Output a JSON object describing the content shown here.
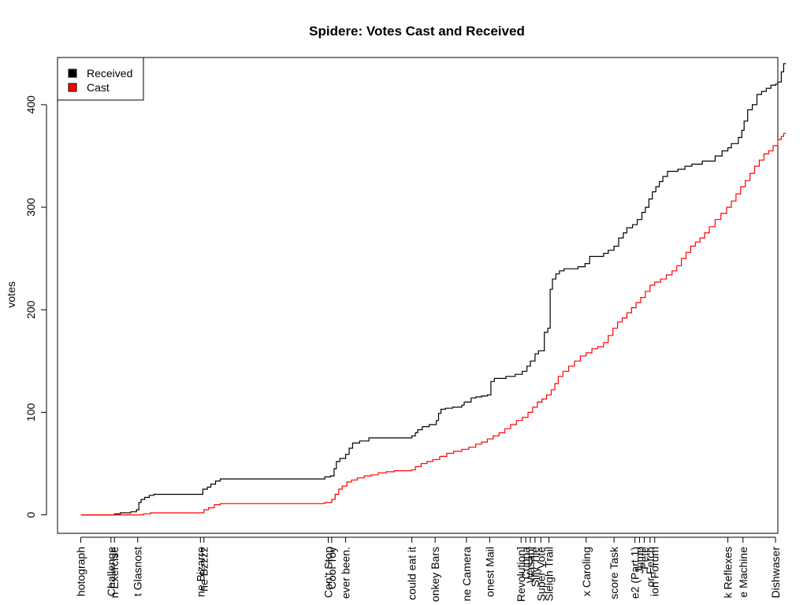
{
  "chart_data": {
    "type": "line",
    "subtype": "step",
    "title": "Spidere: Votes Cast and Received",
    "xlabel": "",
    "ylabel": "votes",
    "ylim": [
      -18,
      446
    ],
    "xlim": [
      -2,
      60
    ],
    "yticks": [
      0,
      100,
      200,
      300,
      400
    ],
    "ytick_labels": [
      "0",
      "100",
      "200",
      "300",
      "400"
    ],
    "legend": {
      "position": "top-left",
      "entries": [
        {
          "name": "Received",
          "color": "#000000"
        },
        {
          "name": "Cast",
          "color": "#ff0000"
        }
      ]
    },
    "x_ticks": [
      {
        "x": 0.0,
        "label": "hotograph"
      },
      {
        "x": 2.6,
        "label": "Challenge"
      },
      {
        "x": 2.9,
        "label": "n Exercise"
      },
      {
        "x": 4.9,
        "label": "t Glasnost"
      },
      {
        "x": 10.3,
        "label": "ne Bizarre"
      },
      {
        "x": 10.6,
        "label": "ne Bzzzz"
      },
      {
        "x": 21.3,
        "label": "Con't Stop"
      },
      {
        "x": 21.6,
        "label": "Cool Toy"
      },
      {
        "x": 22.8,
        "label": "ever been."
      },
      {
        "x": 28.5,
        "label": "could eat it"
      },
      {
        "x": 30.5,
        "label": "onkey Bars"
      },
      {
        "x": 33.2,
        "label": "ne Camera"
      },
      {
        "x": 35.2,
        "label": "onest Mail"
      },
      {
        "x": 37.9,
        "label": "Revolution]"
      },
      {
        "x": 38.3,
        "label": "Cuppa"
      },
      {
        "x": 38.7,
        "label": "Wasabi"
      },
      {
        "x": 39.1,
        "label": "Silly Tile"
      },
      {
        "x": 39.6,
        "label": "Super Vote"
      },
      {
        "x": 40.3,
        "label": "Sleigh Trail"
      },
      {
        "x": 43.5,
        "label": "x Caroling"
      },
      {
        "x": 45.9,
        "label": "score Task"
      },
      {
        "x": 47.7,
        "label": "e2 (Part 1)"
      },
      {
        "x": 48.1,
        "label": "Jump"
      },
      {
        "x": 48.5,
        "label": "Pete"
      },
      {
        "x": 49.0,
        "label": "or Fetch"
      },
      {
        "x": 49.4,
        "label": "ion Forum"
      },
      {
        "x": 55.7,
        "label": "k Reflexes"
      },
      {
        "x": 57.0,
        "label": "e Machine"
      },
      {
        "x": 59.8,
        "label": "Dishwaser"
      }
    ],
    "series": [
      {
        "name": "Received",
        "color": "#000000",
        "points": [
          [
            0.0,
            0
          ],
          [
            2.5,
            0
          ],
          [
            2.9,
            1
          ],
          [
            3.4,
            2
          ],
          [
            4.3,
            3
          ],
          [
            4.8,
            5
          ],
          [
            5.0,
            12
          ],
          [
            5.2,
            15
          ],
          [
            5.5,
            17
          ],
          [
            5.9,
            19
          ],
          [
            6.3,
            20
          ],
          [
            10.3,
            20
          ],
          [
            10.5,
            25
          ],
          [
            10.9,
            27
          ],
          [
            11.2,
            30
          ],
          [
            11.6,
            33
          ],
          [
            12.0,
            35
          ],
          [
            21.0,
            37
          ],
          [
            21.5,
            38
          ],
          [
            21.8,
            45
          ],
          [
            22.0,
            52
          ],
          [
            22.3,
            55
          ],
          [
            22.8,
            59
          ],
          [
            23.1,
            65
          ],
          [
            23.4,
            70
          ],
          [
            24.0,
            72
          ],
          [
            24.8,
            75
          ],
          [
            28.5,
            77
          ],
          [
            28.8,
            80
          ],
          [
            29.0,
            83
          ],
          [
            29.4,
            86
          ],
          [
            30.0,
            88
          ],
          [
            30.6,
            92
          ],
          [
            30.8,
            99
          ],
          [
            31.0,
            103
          ],
          [
            31.4,
            104
          ],
          [
            32.0,
            105
          ],
          [
            32.8,
            107
          ],
          [
            33.0,
            110
          ],
          [
            33.6,
            114
          ],
          [
            34.0,
            115
          ],
          [
            34.5,
            116
          ],
          [
            35.0,
            117
          ],
          [
            35.3,
            130
          ],
          [
            35.6,
            133
          ],
          [
            36.6,
            135
          ],
          [
            37.4,
            137
          ],
          [
            38.0,
            140
          ],
          [
            38.4,
            145
          ],
          [
            38.7,
            150
          ],
          [
            39.1,
            157
          ],
          [
            39.4,
            160
          ],
          [
            39.9,
            178
          ],
          [
            40.2,
            182
          ],
          [
            40.4,
            220
          ],
          [
            40.6,
            230
          ],
          [
            40.9,
            235
          ],
          [
            41.2,
            238
          ],
          [
            41.6,
            240
          ],
          [
            42.8,
            242
          ],
          [
            43.4,
            245
          ],
          [
            43.8,
            252
          ],
          [
            45.0,
            255
          ],
          [
            45.4,
            258
          ],
          [
            45.9,
            262
          ],
          [
            46.3,
            270
          ],
          [
            46.7,
            275
          ],
          [
            47.0,
            280
          ],
          [
            47.5,
            283
          ],
          [
            47.9,
            288
          ],
          [
            48.3,
            295
          ],
          [
            48.6,
            300
          ],
          [
            48.9,
            308
          ],
          [
            49.2,
            315
          ],
          [
            49.5,
            320
          ],
          [
            49.8,
            325
          ],
          [
            50.1,
            330
          ],
          [
            50.5,
            335
          ],
          [
            51.4,
            337
          ],
          [
            52.0,
            340
          ],
          [
            52.6,
            342
          ],
          [
            53.5,
            345
          ],
          [
            54.6,
            350
          ],
          [
            55.2,
            355
          ],
          [
            55.7,
            358
          ],
          [
            56.0,
            362
          ],
          [
            56.6,
            368
          ],
          [
            56.9,
            375
          ],
          [
            57.1,
            384
          ],
          [
            57.4,
            395
          ],
          [
            57.8,
            400
          ],
          [
            58.2,
            410
          ],
          [
            58.6,
            413
          ],
          [
            59.0,
            416
          ],
          [
            59.4,
            419
          ],
          [
            59.8,
            420
          ],
          [
            60.0,
            422
          ],
          [
            60.3,
            432
          ],
          [
            60.5,
            440
          ],
          [
            60.7,
            440
          ]
        ]
      },
      {
        "name": "Cast",
        "color": "#ff0000",
        "points": [
          [
            0.0,
            0
          ],
          [
            5.0,
            0
          ],
          [
            5.4,
            1
          ],
          [
            6.0,
            2
          ],
          [
            10.3,
            2
          ],
          [
            10.6,
            5
          ],
          [
            11.0,
            7
          ],
          [
            11.5,
            10
          ],
          [
            12.0,
            11
          ],
          [
            21.0,
            12
          ],
          [
            21.6,
            15
          ],
          [
            21.9,
            20
          ],
          [
            22.2,
            25
          ],
          [
            22.5,
            28
          ],
          [
            22.9,
            32
          ],
          [
            23.3,
            34
          ],
          [
            23.8,
            36
          ],
          [
            24.4,
            38
          ],
          [
            25.0,
            39
          ],
          [
            25.6,
            41
          ],
          [
            26.3,
            42
          ],
          [
            27.0,
            43
          ],
          [
            28.5,
            44
          ],
          [
            28.8,
            47
          ],
          [
            29.3,
            50
          ],
          [
            29.8,
            52
          ],
          [
            30.3,
            54
          ],
          [
            30.9,
            57
          ],
          [
            31.5,
            60
          ],
          [
            32.1,
            62
          ],
          [
            32.8,
            64
          ],
          [
            33.4,
            66
          ],
          [
            34.0,
            69
          ],
          [
            34.5,
            71
          ],
          [
            35.0,
            74
          ],
          [
            35.5,
            77
          ],
          [
            36.0,
            80
          ],
          [
            36.5,
            84
          ],
          [
            37.0,
            88
          ],
          [
            37.5,
            92
          ],
          [
            38.0,
            95
          ],
          [
            38.5,
            100
          ],
          [
            38.9,
            105
          ],
          [
            39.3,
            110
          ],
          [
            39.7,
            113
          ],
          [
            40.1,
            117
          ],
          [
            40.5,
            122
          ],
          [
            40.8,
            128
          ],
          [
            41.1,
            135
          ],
          [
            41.5,
            140
          ],
          [
            42.0,
            145
          ],
          [
            42.5,
            150
          ],
          [
            43.0,
            155
          ],
          [
            43.5,
            158
          ],
          [
            44.0,
            162
          ],
          [
            44.5,
            164
          ],
          [
            45.0,
            168
          ],
          [
            45.4,
            175
          ],
          [
            45.8,
            182
          ],
          [
            46.2,
            188
          ],
          [
            46.6,
            192
          ],
          [
            47.0,
            197
          ],
          [
            47.4,
            202
          ],
          [
            47.8,
            207
          ],
          [
            48.2,
            212
          ],
          [
            48.6,
            218
          ],
          [
            49.0,
            224
          ],
          [
            49.4,
            227
          ],
          [
            49.9,
            230
          ],
          [
            50.4,
            234
          ],
          [
            50.9,
            238
          ],
          [
            51.3,
            243
          ],
          [
            51.7,
            250
          ],
          [
            52.1,
            256
          ],
          [
            52.5,
            262
          ],
          [
            52.9,
            266
          ],
          [
            53.3,
            270
          ],
          [
            53.7,
            275
          ],
          [
            54.1,
            281
          ],
          [
            54.6,
            288
          ],
          [
            55.1,
            294
          ],
          [
            55.6,
            300
          ],
          [
            56.0,
            306
          ],
          [
            56.4,
            313
          ],
          [
            56.8,
            320
          ],
          [
            57.2,
            326
          ],
          [
            57.6,
            333
          ],
          [
            58.0,
            340
          ],
          [
            58.4,
            346
          ],
          [
            58.8,
            352
          ],
          [
            59.2,
            355
          ],
          [
            59.6,
            360
          ],
          [
            60.0,
            366
          ],
          [
            60.3,
            369
          ],
          [
            60.5,
            372
          ],
          [
            60.7,
            372
          ]
        ]
      }
    ]
  }
}
